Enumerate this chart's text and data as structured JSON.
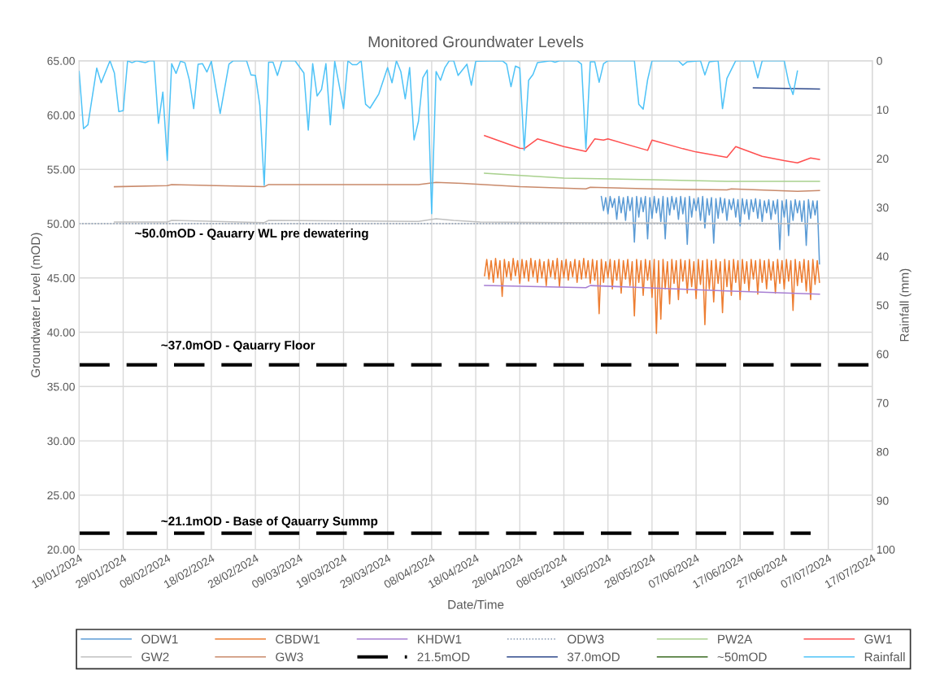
{
  "chart_data": {
    "type": "line",
    "title": "Monitored Groundwater Levels",
    "xlabel": "Date/Time",
    "ylabel": "Groundwater Level (mOD)",
    "y2label": "Rainfall (mm)",
    "xlim": [
      "2024-01-19",
      "2024-07-17"
    ],
    "xticks": [
      {
        "value": "2024-01-19",
        "label": "19/01/2024"
      },
      {
        "value": "2024-01-29",
        "label": "29/01/2024"
      },
      {
        "value": "2024-02-08",
        "label": "08/02/2024"
      },
      {
        "value": "2024-02-18",
        "label": "18/02/2024"
      },
      {
        "value": "2024-02-28",
        "label": "28/02/2024"
      },
      {
        "value": "2024-03-09",
        "label": "09/03/2024"
      },
      {
        "value": "2024-03-19",
        "label": "19/03/2024"
      },
      {
        "value": "2024-03-29",
        "label": "29/03/2024"
      },
      {
        "value": "2024-04-08",
        "label": "08/04/2024"
      },
      {
        "value": "2024-04-18",
        "label": "18/04/2024"
      },
      {
        "value": "2024-04-28",
        "label": "28/04/2024"
      },
      {
        "value": "2024-05-08",
        "label": "08/05/2024"
      },
      {
        "value": "2024-05-18",
        "label": "18/05/2024"
      },
      {
        "value": "2024-05-28",
        "label": "28/05/2024"
      },
      {
        "value": "2024-06-07",
        "label": "07/06/2024"
      },
      {
        "value": "2024-06-17",
        "label": "17/06/2024"
      },
      {
        "value": "2024-06-27",
        "label": "27/06/2024"
      },
      {
        "value": "2024-07-07",
        "label": "07/07/2024"
      },
      {
        "value": "2024-07-17",
        "label": "17/07/2024"
      }
    ],
    "ylim": [
      20,
      65
    ],
    "yticks": [
      {
        "value": 20,
        "label": "20.00"
      },
      {
        "value": 25,
        "label": "25.00"
      },
      {
        "value": 30,
        "label": "30.00"
      },
      {
        "value": 35,
        "label": "35.00"
      },
      {
        "value": 40,
        "label": "40.00"
      },
      {
        "value": 45,
        "label": "45.00"
      },
      {
        "value": 50,
        "label": "50.00"
      },
      {
        "value": 55,
        "label": "55.00"
      },
      {
        "value": 60,
        "label": "60.00"
      },
      {
        "value": 65,
        "label": "65.00"
      }
    ],
    "y2lim": [
      100,
      0
    ],
    "y2ticks": [
      0,
      10,
      20,
      30,
      40,
      50,
      60,
      70,
      80,
      90,
      100
    ],
    "grid": true,
    "legend": "bottom",
    "marker": "none",
    "ref_lines": [
      {
        "axis": "y",
        "value": 37.0,
        "label": null,
        "color": "#000000",
        "line_style": "dashed"
      }
    ],
    "annotations": [
      "~50.0mOD - Qauarry WL pre dewatering",
      "~37.0mOD - Qauarry Floor",
      "~21.1mOD - Base of Qauarry Summp"
    ],
    "series": [
      {
        "name": "ODW1",
        "color": "#5b9bd5",
        "x": [
          "2024-05-16T12:00",
          "2024-05-17",
          "2024-05-17T12:00",
          "2024-05-18",
          "2024-05-18T12:00",
          "2024-05-19",
          "2024-05-19T12:00",
          "2024-05-20",
          "2024-05-20T12:00",
          "2024-05-21",
          "2024-05-21T12:00",
          "2024-05-22",
          "2024-05-22T12:00",
          "2024-05-23",
          "2024-05-23T12:00",
          "2024-05-24",
          "2024-05-24T12:00",
          "2024-05-25",
          "2024-05-25T12:00",
          "2024-05-26",
          "2024-05-26T12:00",
          "2024-05-27",
          "2024-05-27T12:00",
          "2024-05-28",
          "2024-05-28T12:00",
          "2024-05-29",
          "2024-05-29T12:00",
          "2024-05-30",
          "2024-05-30T12:00",
          "2024-05-31",
          "2024-05-31T12:00",
          "2024-06-01",
          "2024-06-01T12:00",
          "2024-06-02",
          "2024-06-02T12:00",
          "2024-06-03",
          "2024-06-03T12:00",
          "2024-06-04",
          "2024-06-04T12:00",
          "2024-06-05",
          "2024-06-05T12:00",
          "2024-06-06",
          "2024-06-06T12:00",
          "2024-06-07",
          "2024-06-07T12:00",
          "2024-06-08",
          "2024-06-08T12:00",
          "2024-06-09",
          "2024-06-09T12:00",
          "2024-06-10",
          "2024-06-10T12:00",
          "2024-06-11",
          "2024-06-11T12:00",
          "2024-06-12",
          "2024-06-12T12:00",
          "2024-06-13",
          "2024-06-13T12:00",
          "2024-06-14",
          "2024-06-14T12:00",
          "2024-06-15",
          "2024-06-15T12:00",
          "2024-06-16",
          "2024-06-16T12:00",
          "2024-06-17",
          "2024-06-17T12:00",
          "2024-06-18",
          "2024-06-18T12:00",
          "2024-06-19",
          "2024-06-19T12:00",
          "2024-06-20",
          "2024-06-20T12:00",
          "2024-06-21",
          "2024-06-21T12:00",
          "2024-06-22",
          "2024-06-22T12:00",
          "2024-06-23",
          "2024-06-23T12:00",
          "2024-06-24",
          "2024-06-24T12:00",
          "2024-06-25",
          "2024-06-25T12:00",
          "2024-06-26",
          "2024-06-26T12:00",
          "2024-06-27",
          "2024-06-27T12:00",
          "2024-06-28",
          "2024-06-28T12:00",
          "2024-06-29",
          "2024-06-29T12:00",
          "2024-06-30",
          "2024-06-30T12:00",
          "2024-07-01",
          "2024-07-01T12:00",
          "2024-07-02",
          "2024-07-02T12:00",
          "2024-07-03",
          "2024-07-03T12:00",
          "2024-07-04",
          "2024-07-04T12:00",
          "2024-07-05"
        ],
        "values": [
          52.5,
          51.2,
          52.4,
          50.9,
          52.5,
          51.5,
          52.3,
          50.4,
          52.5,
          51.0,
          52.4,
          50.3,
          52.5,
          51.2,
          52.4,
          48.3,
          52.5,
          50.6,
          52.4,
          51.1,
          52.5,
          48.6,
          52.4,
          50.5,
          52.5,
          51.0,
          52.3,
          50.2,
          52.5,
          48.6,
          52.4,
          50.8,
          52.5,
          51.3,
          52.4,
          50.4,
          52.5,
          50.9,
          52.4,
          48.1,
          52.5,
          50.6,
          52.3,
          51.2,
          52.4,
          50.3,
          52.5,
          49.6,
          52.3,
          50.8,
          52.4,
          48.2,
          52.3,
          50.5,
          52.4,
          51.0,
          52.3,
          50.3,
          52.2,
          51.3,
          52.3,
          50.6,
          52.2,
          49.8,
          52.3,
          50.9,
          52.2,
          50.4,
          52.2,
          51.1,
          52.3,
          50.5,
          52.2,
          50.2,
          52.1,
          51.0,
          52.2,
          50.4,
          52.1,
          50.9,
          52.2,
          47.6,
          52.1,
          50.6,
          52.2,
          48.9,
          52.1,
          50.3,
          52.2,
          51.0,
          52.1,
          50.2,
          52.1,
          48.0,
          52.2,
          50.5,
          52.1,
          50.8,
          52.1,
          46.3
        ]
      },
      {
        "name": "CBDW1",
        "color": "#ed7d31",
        "x": [
          "2024-04-20",
          "2024-04-20T12:00",
          "2024-04-21",
          "2024-04-21T12:00",
          "2024-04-22",
          "2024-04-22T12:00",
          "2024-04-23",
          "2024-04-23T12:00",
          "2024-04-24",
          "2024-04-24T12:00",
          "2024-04-25",
          "2024-04-25T12:00",
          "2024-04-26",
          "2024-04-26T12:00",
          "2024-04-27",
          "2024-04-27T12:00",
          "2024-04-28",
          "2024-04-28T12:00",
          "2024-04-29",
          "2024-04-29T12:00",
          "2024-04-30",
          "2024-04-30T12:00",
          "2024-05-01",
          "2024-05-01T12:00",
          "2024-05-02",
          "2024-05-02T12:00",
          "2024-05-03",
          "2024-05-03T12:00",
          "2024-05-04",
          "2024-05-04T12:00",
          "2024-05-05",
          "2024-05-05T12:00",
          "2024-05-06",
          "2024-05-06T12:00",
          "2024-05-07",
          "2024-05-07T12:00",
          "2024-05-08",
          "2024-05-08T12:00",
          "2024-05-09",
          "2024-05-09T12:00",
          "2024-05-10",
          "2024-05-10T12:00",
          "2024-05-11",
          "2024-05-11T12:00",
          "2024-05-12",
          "2024-05-12T12:00",
          "2024-05-13",
          "2024-05-13T12:00",
          "2024-05-14",
          "2024-05-14T12:00",
          "2024-05-15",
          "2024-05-15T12:00",
          "2024-05-16",
          "2024-05-16T12:00",
          "2024-05-17",
          "2024-05-17T12:00",
          "2024-05-18",
          "2024-05-18T12:00",
          "2024-05-19",
          "2024-05-19T12:00",
          "2024-05-20",
          "2024-05-20T12:00",
          "2024-05-21",
          "2024-05-21T12:00",
          "2024-05-22",
          "2024-05-22T12:00",
          "2024-05-23",
          "2024-05-23T12:00",
          "2024-05-24",
          "2024-05-24T12:00",
          "2024-05-25",
          "2024-05-25T12:00",
          "2024-05-26",
          "2024-05-26T12:00",
          "2024-05-27",
          "2024-05-27T12:00",
          "2024-05-28",
          "2024-05-28T12:00",
          "2024-05-29",
          "2024-05-29T12:00",
          "2024-05-30",
          "2024-05-30T12:00",
          "2024-05-31",
          "2024-05-31T12:00",
          "2024-06-01",
          "2024-06-01T12:00",
          "2024-06-02",
          "2024-06-02T12:00",
          "2024-06-03",
          "2024-06-03T12:00",
          "2024-06-04",
          "2024-06-04T12:00",
          "2024-06-05",
          "2024-06-05T12:00",
          "2024-06-06",
          "2024-06-06T12:00",
          "2024-06-07",
          "2024-06-07T12:00",
          "2024-06-08",
          "2024-06-08T12:00",
          "2024-06-09",
          "2024-06-09T12:00",
          "2024-06-10",
          "2024-06-10T12:00",
          "2024-06-11",
          "2024-06-11T12:00",
          "2024-06-12",
          "2024-06-12T12:00",
          "2024-06-13",
          "2024-06-13T12:00",
          "2024-06-14",
          "2024-06-14T12:00",
          "2024-06-15",
          "2024-06-15T12:00",
          "2024-06-16",
          "2024-06-16T12:00",
          "2024-06-17",
          "2024-06-17T12:00",
          "2024-06-18",
          "2024-06-18T12:00",
          "2024-06-19",
          "2024-06-19T12:00",
          "2024-06-20",
          "2024-06-20T12:00",
          "2024-06-21",
          "2024-06-21T12:00",
          "2024-06-22",
          "2024-06-22T12:00",
          "2024-06-23",
          "2024-06-23T12:00",
          "2024-06-24",
          "2024-06-24T12:00",
          "2024-06-25",
          "2024-06-25T12:00",
          "2024-06-26",
          "2024-06-26T12:00",
          "2024-06-27",
          "2024-06-27T12:00",
          "2024-06-28",
          "2024-06-28T12:00",
          "2024-06-29",
          "2024-06-29T12:00",
          "2024-06-30",
          "2024-06-30T12:00",
          "2024-07-01",
          "2024-07-01T12:00",
          "2024-07-02",
          "2024-07-02T12:00",
          "2024-07-03",
          "2024-07-03T12:00",
          "2024-07-04",
          "2024-07-04T12:00",
          "2024-07-05"
        ],
        "values": [
          45.2,
          46.7,
          44.9,
          46.6,
          44.6,
          46.8,
          45.0,
          46.6,
          43.3,
          46.7,
          45.1,
          46.5,
          44.8,
          46.8,
          45.2,
          46.6,
          44.5,
          46.7,
          45.0,
          46.6,
          44.7,
          46.8,
          45.1,
          46.6,
          44.6,
          46.7,
          45.0,
          46.5,
          44.3,
          46.7,
          45.1,
          46.6,
          44.9,
          46.8,
          44.2,
          46.6,
          45.0,
          46.7,
          44.8,
          46.5,
          45.1,
          46.7,
          44.6,
          46.6,
          44.9,
          46.8,
          45.0,
          46.6,
          44.5,
          46.7,
          44.8,
          46.6,
          41.7,
          46.7,
          44.6,
          46.5,
          45.0,
          46.7,
          44.0,
          46.6,
          44.8,
          46.7,
          43.6,
          46.6,
          44.9,
          46.7,
          44.3,
          46.5,
          41.5,
          46.7,
          44.6,
          46.6,
          43.4,
          46.7,
          44.8,
          46.6,
          43.2,
          46.7,
          39.9,
          46.6,
          41.2,
          46.7,
          44.0,
          46.5,
          42.6,
          46.7,
          44.5,
          46.6,
          43.0,
          46.7,
          44.7,
          46.6,
          43.6,
          46.7,
          44.2,
          46.5,
          43.1,
          46.7,
          44.4,
          46.6,
          40.7,
          46.7,
          44.0,
          46.6,
          42.8,
          46.7,
          44.5,
          46.5,
          41.8,
          46.7,
          44.2,
          46.6,
          43.4,
          46.7,
          44.6,
          46.6,
          43.0,
          46.7,
          44.5,
          46.5,
          43.8,
          46.7,
          44.9,
          46.6,
          43.5,
          46.7,
          44.6,
          46.6,
          44.0,
          46.7,
          44.8,
          46.5,
          43.6,
          46.7,
          44.5,
          46.6,
          44.0,
          46.7,
          44.7,
          46.6,
          42.0,
          46.7,
          44.3,
          46.5,
          44.6,
          46.7,
          43.8,
          46.6,
          43.0,
          46.7,
          44.4,
          46.6,
          44.6
        ]
      },
      {
        "name": "KHDW1",
        "color": "#a77fd3",
        "x": [
          "2024-04-20",
          "2024-05-13",
          "2024-05-14",
          "2024-06-14",
          "2024-07-05"
        ],
        "values": [
          44.3,
          44.1,
          44.3,
          43.8,
          43.5
        ]
      },
      {
        "name": "ODW3",
        "color": "#8497b0",
        "line_style": "dotted",
        "x": [
          "2024-01-19",
          "2024-07-05"
        ],
        "values": [
          50.0,
          50.0
        ]
      },
      {
        "name": "PW2A",
        "color": "#a9d18e",
        "x": [
          "2024-04-20",
          "2024-05-08",
          "2024-05-28",
          "2024-06-14",
          "2024-07-05"
        ],
        "values": [
          54.65,
          54.2,
          54.05,
          53.9,
          53.9
        ]
      },
      {
        "name": "GW1",
        "color": "#ff5050",
        "x": [
          "2024-04-20",
          "2024-04-28",
          "2024-04-29",
          "2024-05-02",
          "2024-05-08",
          "2024-05-13",
          "2024-05-15",
          "2024-05-17",
          "2024-05-18",
          "2024-05-27",
          "2024-05-28",
          "2024-06-04",
          "2024-06-07",
          "2024-06-14",
          "2024-06-16",
          "2024-06-22",
          "2024-06-27",
          "2024-06-30",
          "2024-07-03",
          "2024-07-05"
        ],
        "values": [
          58.1,
          56.95,
          56.9,
          57.8,
          57.1,
          56.65,
          57.8,
          57.7,
          57.8,
          56.75,
          57.7,
          56.9,
          56.6,
          56.1,
          57.1,
          56.2,
          55.8,
          55.6,
          56.05,
          55.9
        ]
      },
      {
        "name": "GW2",
        "color": "#c0c0c0",
        "x": [
          "2024-01-27",
          "2024-02-08",
          "2024-02-09",
          "2024-03-01",
          "2024-03-02",
          "2024-04-05",
          "2024-04-09",
          "2024-04-13",
          "2024-04-19",
          "2024-05-08",
          "2024-07-05"
        ],
        "values": [
          50.15,
          50.15,
          50.3,
          50.1,
          50.3,
          50.2,
          50.45,
          50.3,
          50.15,
          50.1,
          50.0
        ]
      },
      {
        "name": "GW3",
        "color": "#c98a6b",
        "x": [
          "2024-01-27",
          "2024-02-08",
          "2024-02-09",
          "2024-03-01",
          "2024-03-02",
          "2024-04-05",
          "2024-04-09",
          "2024-04-15",
          "2024-04-28",
          "2024-05-13",
          "2024-05-14",
          "2024-05-28",
          "2024-06-14",
          "2024-06-15",
          "2024-06-30",
          "2024-07-05"
        ],
        "values": [
          53.4,
          53.5,
          53.6,
          53.4,
          53.6,
          53.6,
          53.8,
          53.7,
          53.4,
          53.2,
          53.35,
          53.2,
          53.1,
          53.2,
          52.97,
          53.05
        ]
      },
      {
        "name": "21.5mOD",
        "color": "#000000",
        "line_style": "dashed",
        "x": [
          "2024-01-19",
          "2024-07-03"
        ],
        "values": [
          21.5,
          21.5
        ]
      },
      {
        "name": "37.0mOD",
        "color": "#2f4a8c",
        "x": [
          "2024-06-20",
          "2024-07-05"
        ],
        "values": [
          62.5,
          62.4
        ]
      },
      {
        "name": "~50mOD",
        "color": "#3a6b22"
      },
      {
        "name": "Rainfall",
        "color": "#4fc3f7",
        "axis": "y2",
        "x": [
          "2024-01-19",
          "2024-01-20",
          "2024-01-21",
          "2024-01-23",
          "2024-01-24",
          "2024-01-26",
          "2024-01-27",
          "2024-01-28",
          "2024-01-29",
          "2024-01-30",
          "2024-01-31",
          "2024-02-01",
          "2024-02-03",
          "2024-02-04",
          "2024-02-05",
          "2024-02-06",
          "2024-02-07",
          "2024-02-08",
          "2024-02-09",
          "2024-02-10",
          "2024-02-11",
          "2024-02-12",
          "2024-02-13",
          "2024-02-14",
          "2024-02-15",
          "2024-02-16",
          "2024-02-17",
          "2024-02-18",
          "2024-02-20",
          "2024-02-22",
          "2024-02-23",
          "2024-02-26",
          "2024-02-27",
          "2024-02-28",
          "2024-02-29",
          "2024-03-01",
          "2024-03-02",
          "2024-03-03",
          "2024-03-04",
          "2024-03-05",
          "2024-03-08",
          "2024-03-10",
          "2024-03-11",
          "2024-03-12",
          "2024-03-13",
          "2024-03-14",
          "2024-03-15",
          "2024-03-16",
          "2024-03-17",
          "2024-03-19",
          "2024-03-20",
          "2024-03-21",
          "2024-03-22",
          "2024-03-23",
          "2024-03-24",
          "2024-03-25",
          "2024-03-27",
          "2024-03-29",
          "2024-03-30",
          "2024-03-31",
          "2024-04-01",
          "2024-04-02",
          "2024-04-03",
          "2024-04-04",
          "2024-04-05",
          "2024-04-06",
          "2024-04-07",
          "2024-04-08",
          "2024-04-09",
          "2024-04-10",
          "2024-04-11",
          "2024-04-12",
          "2024-04-13",
          "2024-04-14",
          "2024-04-16",
          "2024-04-17",
          "2024-04-18",
          "2024-04-24",
          "2024-04-25",
          "2024-04-26",
          "2024-04-27",
          "2024-04-28",
          "2024-04-29",
          "2024-04-30",
          "2024-05-01",
          "2024-05-02",
          "2024-05-05",
          "2024-05-06",
          "2024-05-07",
          "2024-05-11",
          "2024-05-12",
          "2024-05-13",
          "2024-05-14",
          "2024-05-15",
          "2024-05-16",
          "2024-05-17",
          "2024-05-18",
          "2024-05-24",
          "2024-05-25",
          "2024-05-26",
          "2024-05-27",
          "2024-05-28",
          "2024-06-03",
          "2024-06-04",
          "2024-06-05",
          "2024-06-08",
          "2024-06-09",
          "2024-06-10",
          "2024-06-12",
          "2024-06-13",
          "2024-06-14",
          "2024-06-16",
          "2024-06-20",
          "2024-06-21",
          "2024-06-22",
          "2024-06-27",
          "2024-06-28",
          "2024-06-29",
          "2024-06-30"
        ],
        "values": [
          2.2,
          13.9,
          13.1,
          1.5,
          4.5,
          0,
          2.5,
          10.4,
          10.2,
          0,
          0.4,
          0,
          0.4,
          0,
          0,
          12.8,
          6.4,
          20.4,
          0.6,
          2.6,
          0.1,
          0.4,
          3.9,
          9.8,
          0.7,
          0.6,
          2.3,
          0.1,
          10.8,
          0.7,
          0,
          0,
          2.9,
          3.0,
          9.1,
          25.5,
          0.3,
          0.3,
          3.0,
          0,
          0,
          2.5,
          14.2,
          0.6,
          7.2,
          5.9,
          0.6,
          13.1,
          0.1,
          9.8,
          0,
          0.8,
          0.8,
          0,
          8.9,
          9.7,
          6.8,
          1.4,
          4.5,
          0,
          2.2,
          7.8,
          1.4,
          16.2,
          12.4,
          3.5,
          1.9,
          31.3,
          2.2,
          4.0,
          1.4,
          0,
          0,
          3.0,
          0.7,
          5.0,
          0.1,
          0,
          0.7,
          5.3,
          1.1,
          1.5,
          18.3,
          4.0,
          2.8,
          0.4,
          0,
          0.3,
          0,
          0,
          0.7,
          18.0,
          0.2,
          0.2,
          4.4,
          0.6,
          0,
          0,
          8.9,
          9.9,
          3.9,
          0,
          0,
          0.9,
          0.2,
          0,
          2.9,
          0.2,
          0,
          9.8,
          3.6,
          0,
          0,
          3.5,
          0,
          0,
          4.4,
          6.9,
          2.1
        ]
      }
    ]
  }
}
